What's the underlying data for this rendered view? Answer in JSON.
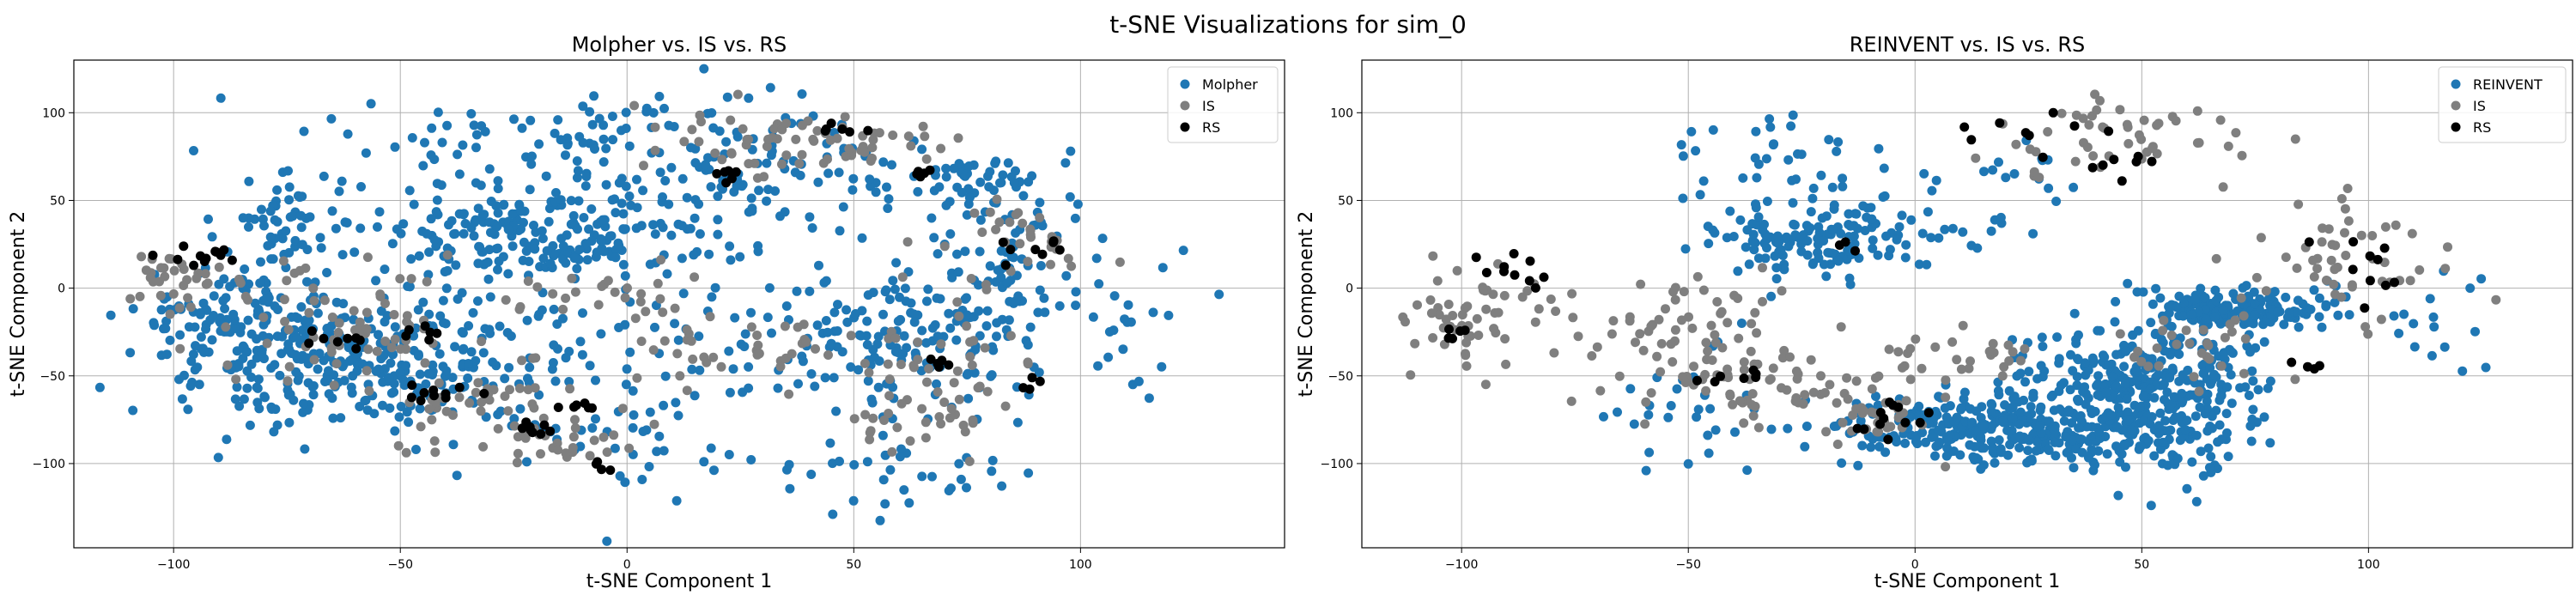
{
  "figure": {
    "title": "t-SNE Visualizations for sim_0"
  },
  "chart_data": [
    {
      "type": "scatter",
      "title": "Molpher vs. IS vs. RS",
      "xlabel": "t-SNE Component 1",
      "ylabel": "t-SNE Component 2",
      "xlim": [
        -122,
        145
      ],
      "ylim": [
        -148,
        130
      ],
      "xticks": [
        -100,
        -50,
        0,
        50,
        100
      ],
      "yticks": [
        -100,
        -50,
        0,
        50,
        100
      ],
      "grid": true,
      "legend_position": "top-right",
      "legend": [
        "Molpher",
        "IS",
        "RS"
      ],
      "series": [
        {
          "name": "Molpher",
          "color": "#1f77b4",
          "clusters": [
            {
              "center": [
                -85,
                -20
              ],
              "spread": [
                12,
                18
              ],
              "count": 160
            },
            {
              "center": [
                -55,
                -45
              ],
              "spread": [
                18,
                18
              ],
              "count": 260
            },
            {
              "center": [
                -75,
                40
              ],
              "spread": [
                8,
                12
              ],
              "count": 50
            },
            {
              "center": [
                -20,
                30
              ],
              "spread": [
                20,
                15
              ],
              "count": 230
            },
            {
              "center": [
                0,
                85
              ],
              "spread": [
                30,
                15
              ],
              "count": 120
            },
            {
              "center": [
                35,
                60
              ],
              "spread": [
                20,
                15
              ],
              "count": 80
            },
            {
              "center": [
                60,
                -30
              ],
              "spread": [
                12,
                18
              ],
              "count": 120
            },
            {
              "center": [
                85,
                0
              ],
              "spread": [
                12,
                30
              ],
              "count": 110
            },
            {
              "center": [
                80,
                60
              ],
              "spread": [
                8,
                8
              ],
              "count": 40
            },
            {
              "center": [
                55,
                -100
              ],
              "spread": [
                20,
                15
              ],
              "count": 40
            },
            {
              "center": [
                -10,
                -80
              ],
              "spread": [
                20,
                20
              ],
              "count": 40
            },
            {
              "center": [
                10,
                -25
              ],
              "spread": [
                25,
                25
              ],
              "count": 70
            },
            {
              "center": [
                120,
                -20
              ],
              "spread": [
                10,
                25
              ],
              "count": 12
            }
          ]
        },
        {
          "name": "IS",
          "color": "#7f7f7f",
          "clusters": [
            {
              "center": [
                -100,
                5
              ],
              "spread": [
                8,
                10
              ],
              "count": 35
            },
            {
              "center": [
                -60,
                -20
              ],
              "spread": [
                15,
                15
              ],
              "count": 70
            },
            {
              "center": [
                -30,
                -70
              ],
              "spread": [
                12,
                12
              ],
              "count": 45
            },
            {
              "center": [
                -15,
                -85
              ],
              "spread": [
                8,
                8
              ],
              "count": 25
            },
            {
              "center": [
                -5,
                -5
              ],
              "spread": [
                10,
                8
              ],
              "count": 25
            },
            {
              "center": [
                30,
                85
              ],
              "spread": [
                15,
                10
              ],
              "count": 45
            },
            {
              "center": [
                30,
                -35
              ],
              "spread": [
                20,
                10
              ],
              "count": 45
            },
            {
              "center": [
                60,
                -75
              ],
              "spread": [
                10,
                10
              ],
              "count": 30
            },
            {
              "center": [
                85,
                25
              ],
              "spread": [
                10,
                12
              ],
              "count": 35
            },
            {
              "center": [
                70,
                -40
              ],
              "spread": [
                8,
                10
              ],
              "count": 25
            },
            {
              "center": [
                55,
                80
              ],
              "spread": [
                10,
                8
              ],
              "count": 25
            }
          ]
        },
        {
          "name": "RS",
          "color": "#000000",
          "clusters": [
            {
              "center": [
                -95,
                18
              ],
              "spread": [
                5,
                3
              ],
              "count": 12
            },
            {
              "center": [
                -65,
                -30
              ],
              "spread": [
                4,
                3
              ],
              "count": 8
            },
            {
              "center": [
                -45,
                -25
              ],
              "spread": [
                3,
                3
              ],
              "count": 6
            },
            {
              "center": [
                -40,
                -60
              ],
              "spread": [
                4,
                3
              ],
              "count": 10
            },
            {
              "center": [
                -20,
                -80
              ],
              "spread": [
                3,
                2
              ],
              "count": 8
            },
            {
              "center": [
                -10,
                -68
              ],
              "spread": [
                3,
                2
              ],
              "count": 6
            },
            {
              "center": [
                22,
                65
              ],
              "spread": [
                3,
                3
              ],
              "count": 6
            },
            {
              "center": [
                50,
                90
              ],
              "spread": [
                4,
                3
              ],
              "count": 6
            },
            {
              "center": [
                65,
                65
              ],
              "spread": [
                3,
                3
              ],
              "count": 5
            },
            {
              "center": [
                90,
                20
              ],
              "spread": [
                4,
                6
              ],
              "count": 8
            },
            {
              "center": [
                90,
                -55
              ],
              "spread": [
                2,
                3
              ],
              "count": 4
            },
            {
              "center": [
                70,
                -42
              ],
              "spread": [
                3,
                2
              ],
              "count": 5
            },
            {
              "center": [
                -5,
                -100
              ],
              "spread": [
                2,
                2
              ],
              "count": 4
            }
          ]
        }
      ]
    },
    {
      "type": "scatter",
      "title": "REINVENT vs. IS vs. RS",
      "xlabel": "t-SNE Component 1",
      "ylabel": "t-SNE Component 2",
      "xlim": [
        -122,
        145
      ],
      "ylim": [
        -148,
        130
      ],
      "xticks": [
        -100,
        -50,
        0,
        50,
        100
      ],
      "yticks": [
        -100,
        -50,
        0,
        50,
        100
      ],
      "grid": true,
      "legend_position": "top-right",
      "legend": [
        "REINVENT",
        "IS",
        "RS"
      ],
      "series": [
        {
          "name": "REINVENT",
          "color": "#1f77b4",
          "clusters": [
            {
              "center": [
                -20,
                30
              ],
              "spread": [
                12,
                12
              ],
              "count": 150
            },
            {
              "center": [
                -30,
                75
              ],
              "spread": [
                12,
                12
              ],
              "count": 30
            },
            {
              "center": [
                25,
                -80
              ],
              "spread": [
                22,
                10
              ],
              "count": 420
            },
            {
              "center": [
                50,
                -45
              ],
              "spread": [
                12,
                15
              ],
              "count": 260
            },
            {
              "center": [
                72,
                -12
              ],
              "spread": [
                10,
                5
              ],
              "count": 180
            },
            {
              "center": [
                10,
                60
              ],
              "spread": [
                15,
                15
              ],
              "count": 30
            },
            {
              "center": [
                -50,
                -70
              ],
              "spread": [
                12,
                20
              ],
              "count": 30
            },
            {
              "center": [
                110,
                -20
              ],
              "spread": [
                12,
                20
              ],
              "count": 18
            },
            {
              "center": [
                60,
                -100
              ],
              "spread": [
                15,
                12
              ],
              "count": 25
            }
          ]
        },
        {
          "name": "IS",
          "color": "#7f7f7f",
          "clusters": [
            {
              "center": [
                -100,
                -15
              ],
              "spread": [
                7,
                15
              ],
              "count": 50
            },
            {
              "center": [
                -55,
                -25
              ],
              "spread": [
                15,
                18
              ],
              "count": 70
            },
            {
              "center": [
                -30,
                -55
              ],
              "spread": [
                12,
                10
              ],
              "count": 60
            },
            {
              "center": [
                -10,
                -75
              ],
              "spread": [
                10,
                10
              ],
              "count": 30
            },
            {
              "center": [
                45,
                85
              ],
              "spread": [
                15,
                10
              ],
              "count": 50
            },
            {
              "center": [
                60,
                -35
              ],
              "spread": [
                8,
                12
              ],
              "count": 30
            },
            {
              "center": [
                95,
                10
              ],
              "spread": [
                12,
                18
              ],
              "count": 50
            },
            {
              "center": [
                10,
                -40
              ],
              "spread": [
                15,
                8
              ],
              "count": 30
            }
          ]
        },
        {
          "name": "RS",
          "color": "#000000",
          "clusters": [
            {
              "center": [
                -90,
                10
              ],
              "spread": [
                3,
                8
              ],
              "count": 10
            },
            {
              "center": [
                -100,
                -25
              ],
              "spread": [
                3,
                3
              ],
              "count": 5
            },
            {
              "center": [
                -40,
                -50
              ],
              "spread": [
                4,
                3
              ],
              "count": 7
            },
            {
              "center": [
                -5,
                -75
              ],
              "spread": [
                6,
                5
              ],
              "count": 12
            },
            {
              "center": [
                30,
                90
              ],
              "spread": [
                8,
                5
              ],
              "count": 8
            },
            {
              "center": [
                50,
                70
              ],
              "spread": [
                10,
                4
              ],
              "count": 8
            },
            {
              "center": [
                100,
                10
              ],
              "spread": [
                6,
                15
              ],
              "count": 10
            },
            {
              "center": [
                85,
                -45
              ],
              "spread": [
                3,
                2
              ],
              "count": 4
            },
            {
              "center": [
                -15,
                25
              ],
              "spread": [
                2,
                2
              ],
              "count": 3
            }
          ]
        }
      ]
    }
  ]
}
